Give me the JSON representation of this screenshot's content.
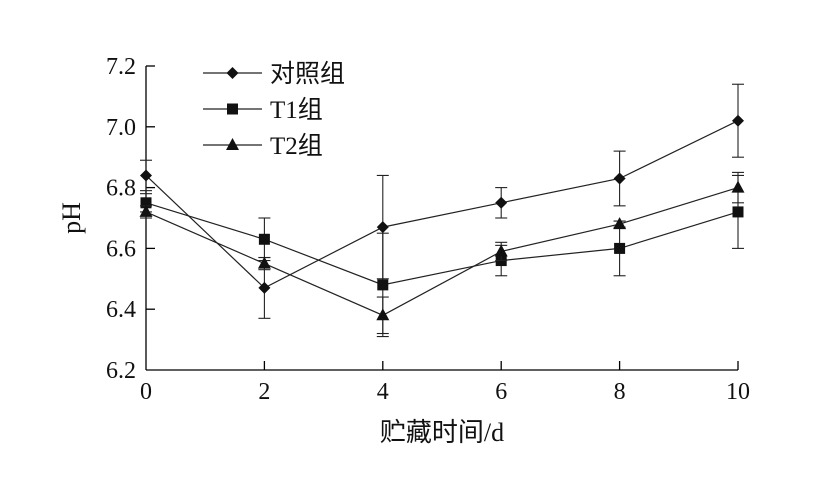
{
  "chart_data": {
    "type": "line",
    "xlabel": "贮藏时间/d",
    "ylabel": "pH",
    "x": [
      0,
      2,
      4,
      6,
      8,
      10
    ],
    "xlim": [
      0,
      10
    ],
    "ylim": [
      6.2,
      7.2
    ],
    "xticks": [
      "0",
      "2",
      "4",
      "6",
      "8",
      "10"
    ],
    "yticks": [
      "6.2",
      "6.4",
      "6.6",
      "6.8",
      "7.0",
      "7.2"
    ],
    "legend": "top-left",
    "grid": false,
    "series": [
      {
        "name": "对照组",
        "marker": "diamond",
        "values": [
          6.84,
          6.47,
          6.67,
          6.75,
          6.83,
          7.02
        ],
        "errors": [
          0.05,
          0.1,
          0.17,
          0.05,
          0.09,
          0.12
        ]
      },
      {
        "name": "T1组",
        "marker": "square",
        "values": [
          6.75,
          6.63,
          6.48,
          6.56,
          6.6,
          6.72
        ],
        "errors": [
          0.03,
          0.07,
          0.17,
          0.05,
          0.09,
          0.12
        ]
      },
      {
        "name": "T2组",
        "marker": "triangle",
        "values": [
          6.72,
          6.55,
          6.38,
          6.59,
          6.68,
          6.8
        ],
        "errors": [
          0.02,
          0.02,
          0.06,
          0.03,
          0.01,
          0.05
        ]
      }
    ]
  }
}
